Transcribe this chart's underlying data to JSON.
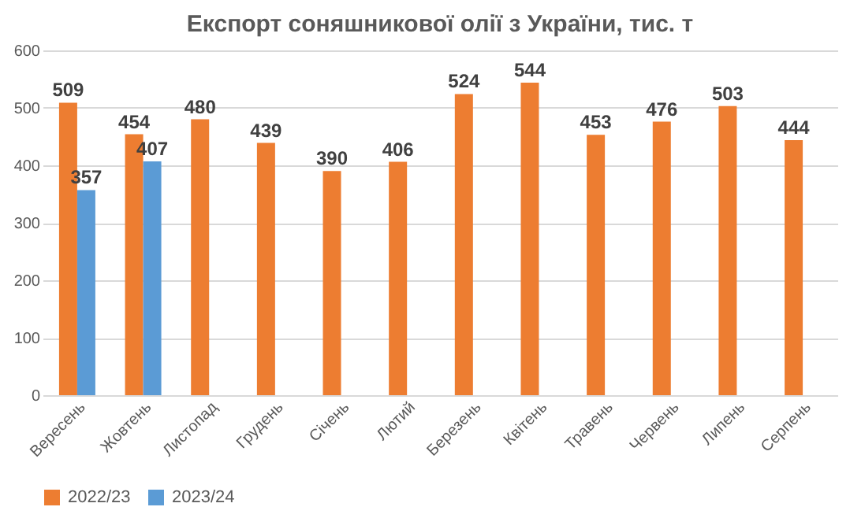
{
  "chart_data": {
    "type": "bar",
    "title": "Експорт соняшникової олії з України, тис. т",
    "categories": [
      "Вересень",
      "Жовтень",
      "Листопад",
      "Грудень",
      "Січень",
      "Лютий",
      "Березень",
      "Квітень",
      "Травень",
      "Червень",
      "Липень",
      "Серпень"
    ],
    "series": [
      {
        "name": "2022/23",
        "color": "#ed7d31",
        "values": [
          509,
          454,
          480,
          439,
          390,
          406,
          524,
          544,
          453,
          476,
          503,
          444
        ]
      },
      {
        "name": "2023/24",
        "color": "#5b9bd5",
        "values": [
          357,
          407,
          null,
          null,
          null,
          null,
          null,
          null,
          null,
          null,
          null,
          null
        ]
      }
    ],
    "ylim": [
      0,
      600
    ],
    "yticks": [
      0,
      100,
      200,
      300,
      400,
      500,
      600
    ],
    "grid": "y",
    "legend": "bottom",
    "data_labels": true
  }
}
